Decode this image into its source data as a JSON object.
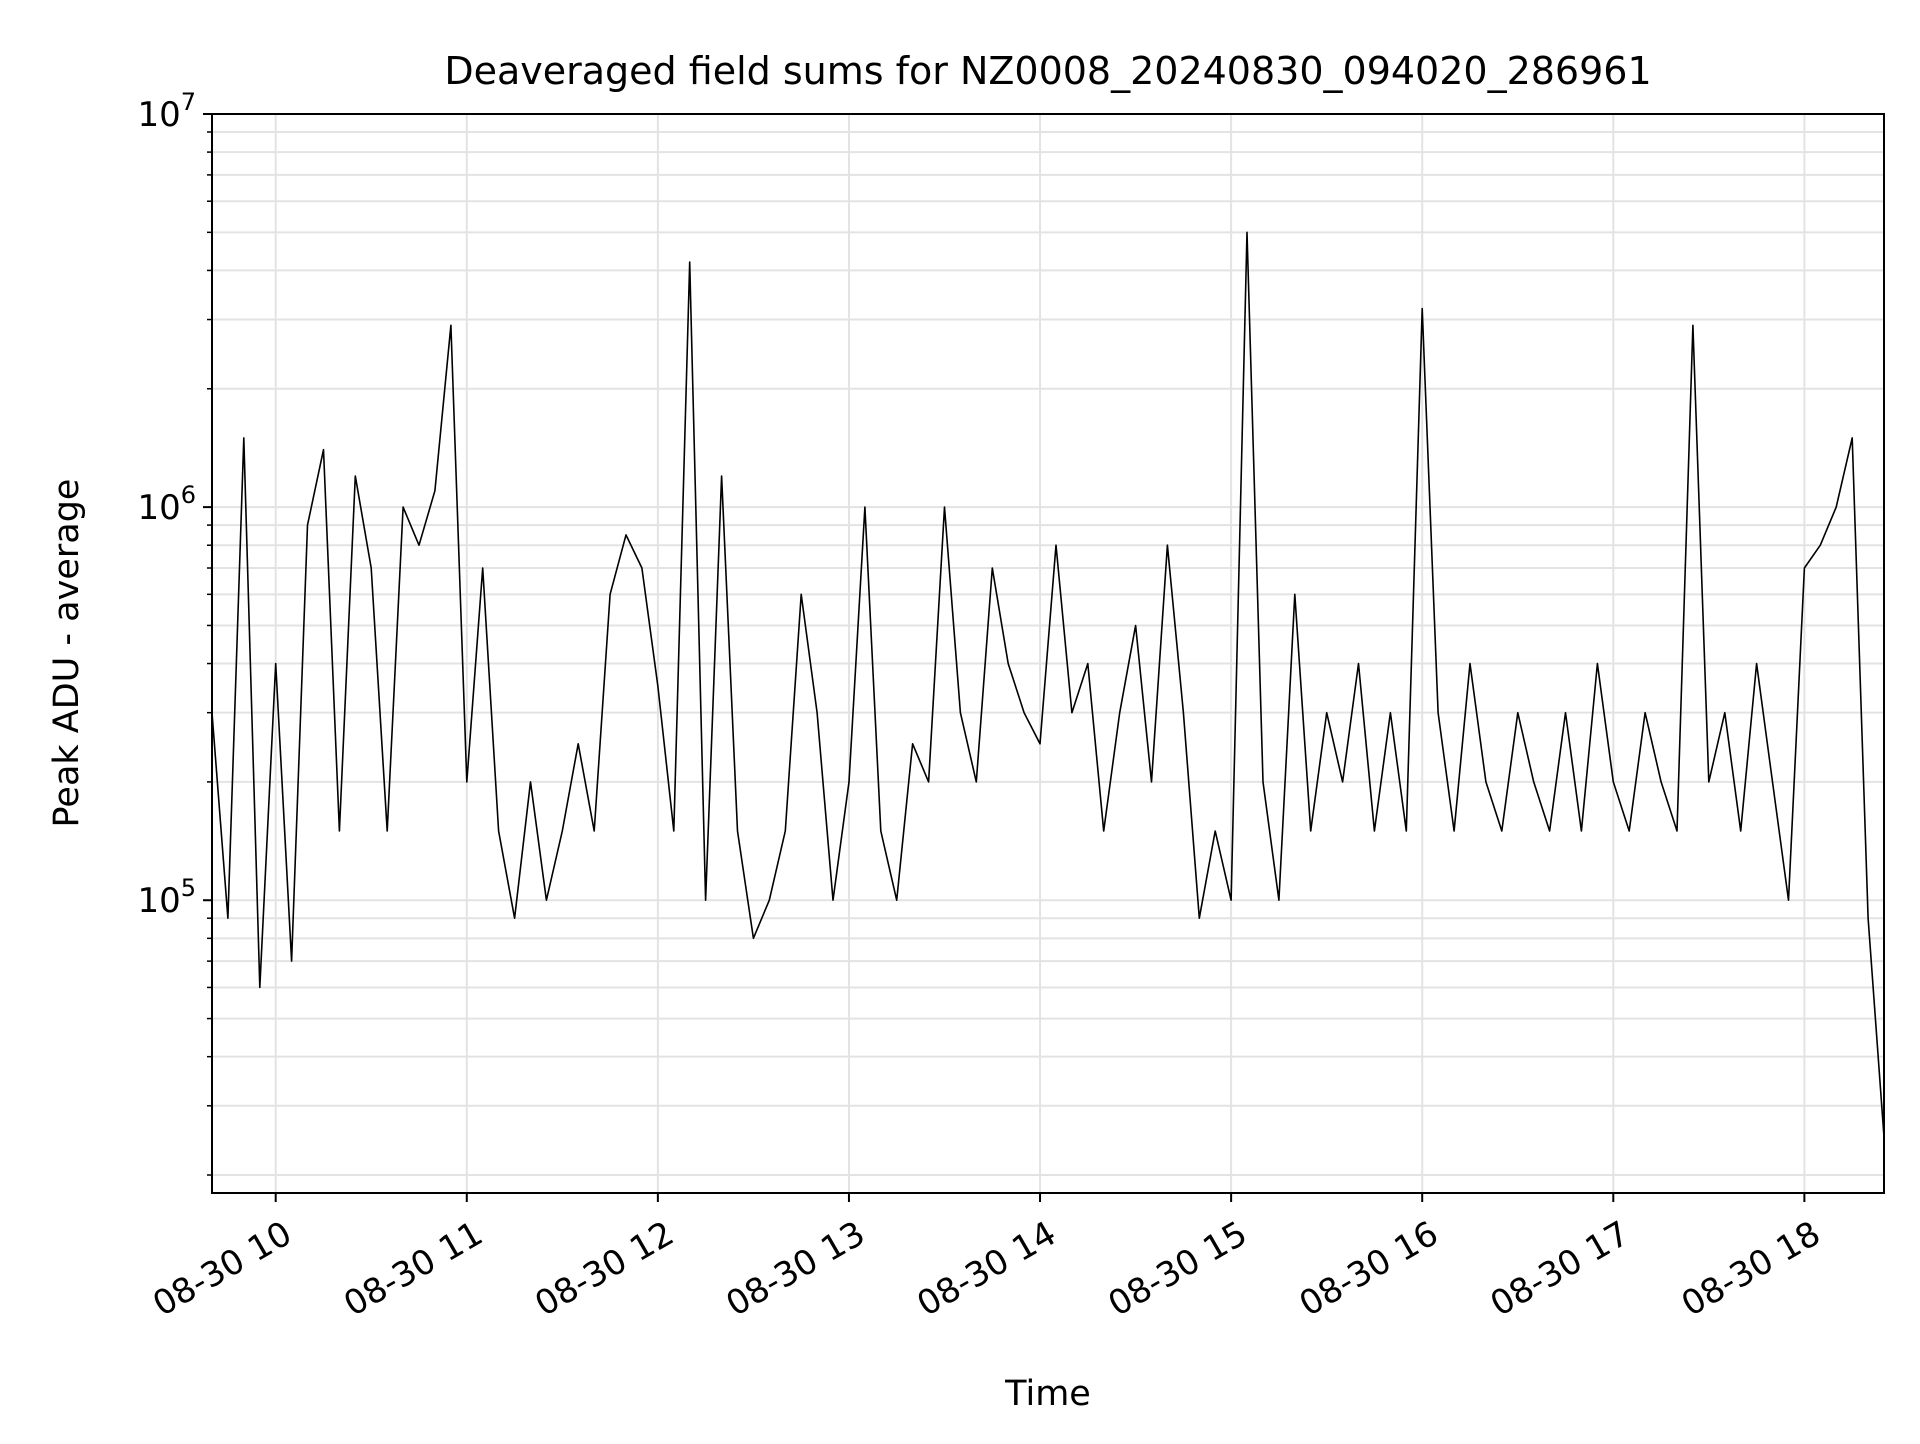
{
  "chart_data": {
    "type": "line",
    "title": "Deaveraged field sums for NZ0008_20240830_094020_286961",
    "xlabel": "Time",
    "ylabel": "Peak ADU - average",
    "y_scale": "log",
    "ylim": [
      18000,
      10000000
    ],
    "xlim": [
      "2024-08-30 09:40",
      "2024-08-30 18:25"
    ],
    "x_ticks": [
      {
        "t": "2024-08-30 10:00",
        "label": "08-30 10"
      },
      {
        "t": "2024-08-30 11:00",
        "label": "08-30 11"
      },
      {
        "t": "2024-08-30 12:00",
        "label": "08-30 12"
      },
      {
        "t": "2024-08-30 13:00",
        "label": "08-30 13"
      },
      {
        "t": "2024-08-30 14:00",
        "label": "08-30 14"
      },
      {
        "t": "2024-08-30 15:00",
        "label": "08-30 15"
      },
      {
        "t": "2024-08-30 16:00",
        "label": "08-30 16"
      },
      {
        "t": "2024-08-30 17:00",
        "label": "08-30 17"
      },
      {
        "t": "2024-08-30 18:00",
        "label": "08-30 18"
      }
    ],
    "y_ticks": [
      {
        "value": 100000,
        "base": "10",
        "exp": "5"
      },
      {
        "value": 1000000,
        "base": "10",
        "exp": "6"
      },
      {
        "value": 10000000,
        "base": "10",
        "exp": "7"
      }
    ],
    "grid": true,
    "line_color": "#000000",
    "series": [
      {
        "x": [
          "2024-08-30 09:40",
          "2024-08-30 09:45",
          "2024-08-30 09:50",
          "2024-08-30 09:55",
          "2024-08-30 10:00",
          "2024-08-30 10:05",
          "2024-08-30 10:10",
          "2024-08-30 10:15",
          "2024-08-30 10:20",
          "2024-08-30 10:25",
          "2024-08-30 10:30",
          "2024-08-30 10:35",
          "2024-08-30 10:40",
          "2024-08-30 10:45",
          "2024-08-30 10:50",
          "2024-08-30 10:55",
          "2024-08-30 11:00",
          "2024-08-30 11:05",
          "2024-08-30 11:10",
          "2024-08-30 11:15",
          "2024-08-30 11:20",
          "2024-08-30 11:25",
          "2024-08-30 11:30",
          "2024-08-30 11:35",
          "2024-08-30 11:40",
          "2024-08-30 11:45",
          "2024-08-30 11:50",
          "2024-08-30 11:55",
          "2024-08-30 12:00",
          "2024-08-30 12:05",
          "2024-08-30 12:10",
          "2024-08-30 12:15",
          "2024-08-30 12:20",
          "2024-08-30 12:25",
          "2024-08-30 12:30",
          "2024-08-30 12:35",
          "2024-08-30 12:40",
          "2024-08-30 12:45",
          "2024-08-30 12:50",
          "2024-08-30 12:55",
          "2024-08-30 13:00",
          "2024-08-30 13:05",
          "2024-08-30 13:10",
          "2024-08-30 13:15",
          "2024-08-30 13:20",
          "2024-08-30 13:25",
          "2024-08-30 13:30",
          "2024-08-30 13:35",
          "2024-08-30 13:40",
          "2024-08-30 13:45",
          "2024-08-30 13:50",
          "2024-08-30 13:55",
          "2024-08-30 14:00",
          "2024-08-30 14:05",
          "2024-08-30 14:10",
          "2024-08-30 14:15",
          "2024-08-30 14:20",
          "2024-08-30 14:25",
          "2024-08-30 14:30",
          "2024-08-30 14:35",
          "2024-08-30 14:40",
          "2024-08-30 14:45",
          "2024-08-30 14:50",
          "2024-08-30 14:55",
          "2024-08-30 15:00",
          "2024-08-30 15:05",
          "2024-08-30 15:10",
          "2024-08-30 15:15",
          "2024-08-30 15:20",
          "2024-08-30 15:25",
          "2024-08-30 15:30",
          "2024-08-30 15:35",
          "2024-08-30 15:40",
          "2024-08-30 15:45",
          "2024-08-30 15:50",
          "2024-08-30 15:55",
          "2024-08-30 16:00",
          "2024-08-30 16:05",
          "2024-08-30 16:10",
          "2024-08-30 16:15",
          "2024-08-30 16:20",
          "2024-08-30 16:25",
          "2024-08-30 16:30",
          "2024-08-30 16:35",
          "2024-08-30 16:40",
          "2024-08-30 16:45",
          "2024-08-30 16:50",
          "2024-08-30 16:55",
          "2024-08-30 17:00",
          "2024-08-30 17:05",
          "2024-08-30 17:10",
          "2024-08-30 17:15",
          "2024-08-30 17:20",
          "2024-08-30 17:25",
          "2024-08-30 17:30",
          "2024-08-30 17:35",
          "2024-08-30 17:40",
          "2024-08-30 17:45",
          "2024-08-30 17:50",
          "2024-08-30 17:55",
          "2024-08-30 18:00",
          "2024-08-30 18:05",
          "2024-08-30 18:10",
          "2024-08-30 18:15",
          "2024-08-30 18:20",
          "2024-08-30 18:25"
        ],
        "y": [
          300000,
          90000,
          1500000,
          60000,
          400000,
          70000,
          900000,
          1400000,
          150000,
          1200000,
          700000,
          150000,
          1000000,
          800000,
          1100000,
          2900000,
          200000,
          700000,
          150000,
          90000,
          200000,
          100000,
          150000,
          250000,
          150000,
          600000,
          850000,
          700000,
          350000,
          150000,
          4200000,
          100000,
          1200000,
          150000,
          80000,
          100000,
          150000,
          600000,
          300000,
          100000,
          200000,
          1000000,
          150000,
          100000,
          250000,
          200000,
          1000000,
          300000,
          200000,
          700000,
          400000,
          300000,
          250000,
          800000,
          300000,
          400000,
          150000,
          300000,
          500000,
          200000,
          800000,
          300000,
          90000,
          150000,
          100000,
          5000000,
          200000,
          100000,
          600000,
          150000,
          300000,
          200000,
          400000,
          150000,
          300000,
          150000,
          3200000,
          300000,
          150000,
          400000,
          200000,
          150000,
          300000,
          200000,
          150000,
          300000,
          150000,
          400000,
          200000,
          150000,
          300000,
          200000,
          150000,
          2900000,
          200000,
          300000,
          150000,
          400000,
          200000,
          100000,
          700000,
          800000,
          1000000,
          1500000,
          90000,
          25000
        ]
      }
    ]
  }
}
